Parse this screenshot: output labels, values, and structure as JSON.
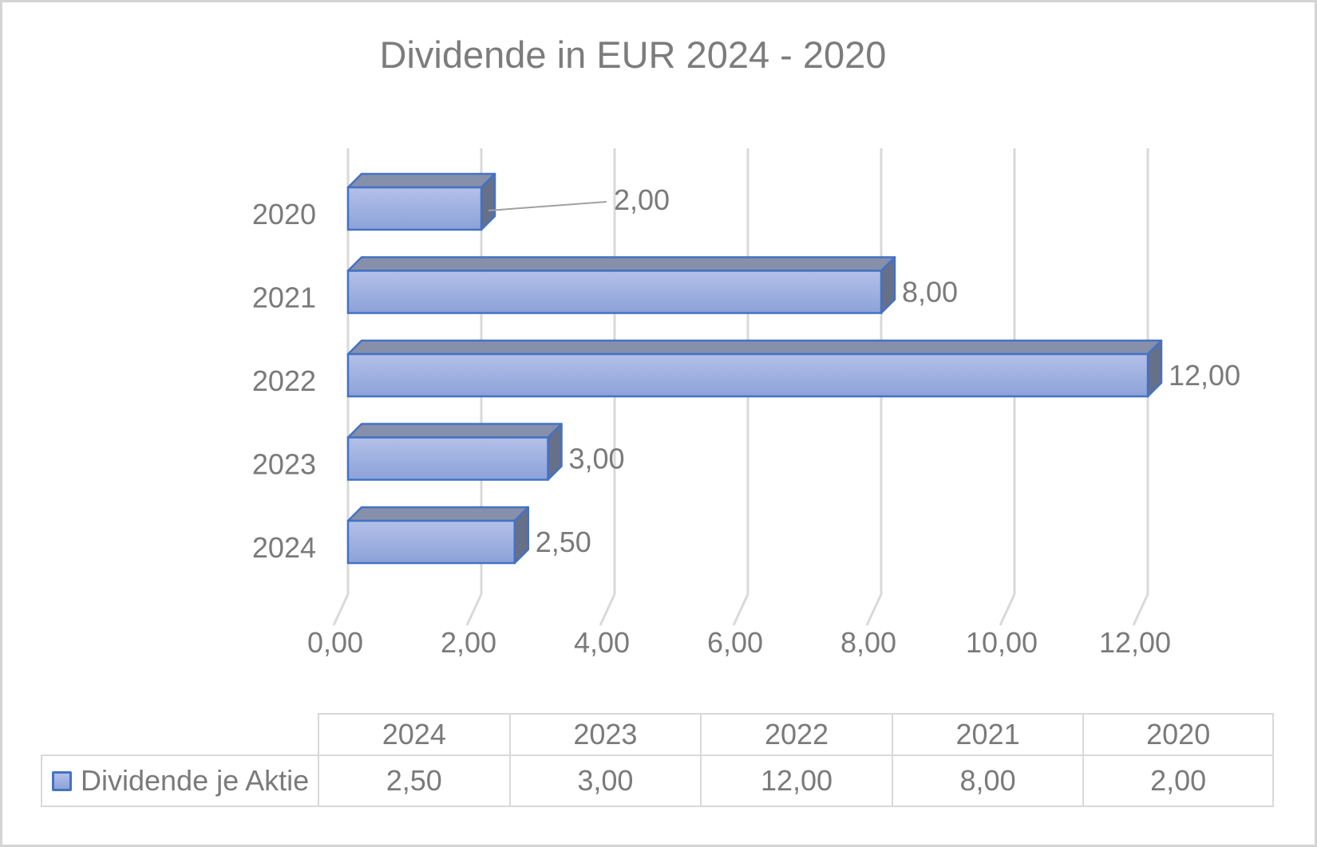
{
  "chart_data": {
    "type": "bar",
    "orientation": "horizontal",
    "style": "3d",
    "title": "Dividende in EUR 2024 - 2020",
    "categories": [
      "2020",
      "2021",
      "2022",
      "2023",
      "2024"
    ],
    "series": [
      {
        "name": "Dividende je Aktie",
        "values": [
          2.0,
          8.0,
          12.0,
          3.0,
          2.5
        ]
      }
    ],
    "data_labels": [
      "2,00",
      "8,00",
      "12,00",
      "3,00",
      "2,50"
    ],
    "x_ticks": [
      {
        "value": 0,
        "label": "0,00"
      },
      {
        "value": 2,
        "label": "2,00"
      },
      {
        "value": 4,
        "label": "4,00"
      },
      {
        "value": 6,
        "label": "6,00"
      },
      {
        "value": 8,
        "label": "8,00"
      },
      {
        "value": 10,
        "label": "10,00"
      },
      {
        "value": 12,
        "label": "12,00"
      }
    ],
    "xlim": [
      0,
      12
    ],
    "xlabel": "",
    "ylabel": "",
    "grid": true,
    "legend_position": "bottom-table",
    "annotations": [
      {
        "type": "leader-line",
        "category": "2020",
        "label": "2,00"
      }
    ]
  },
  "data_table": {
    "row_label": "Dividende je Aktie",
    "columns": [
      "2024",
      "2023",
      "2022",
      "2021",
      "2020"
    ],
    "values": [
      "2,50",
      "3,00",
      "12,00",
      "8,00",
      "2,00"
    ]
  },
  "colors": {
    "bar_front_top": "#b3c0e9",
    "bar_front_bottom": "#8ca2d8",
    "bar_border": "#4472c4",
    "bar_top_face": "#8690aa",
    "bar_side_face": "#667089",
    "gridline": "#d9d9d9",
    "text": "#7a7a7a",
    "title_text": "#7c7c7c",
    "leader_line": "#a0a0a0",
    "table_border": "#d9d9d9",
    "outer_border": "#d4d4d4"
  }
}
